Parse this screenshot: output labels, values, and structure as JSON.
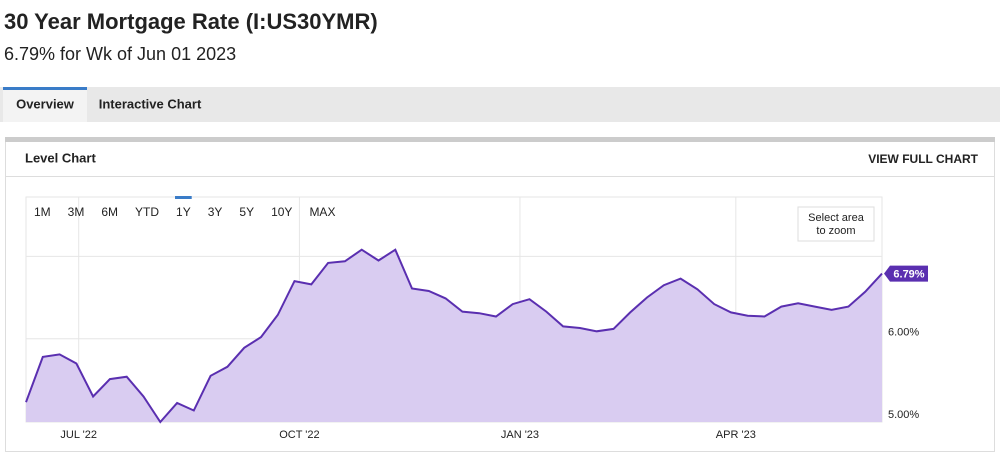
{
  "header": {
    "title": "30 Year Mortgage Rate (I:US30YMR)",
    "subtitle": "6.79% for Wk of Jun 01 2023"
  },
  "tabs": [
    "Overview",
    "Interactive Chart"
  ],
  "panel": {
    "title": "Level Chart",
    "action": "VIEW FULL CHART"
  },
  "ranges": [
    "1M",
    "3M",
    "6M",
    "YTD",
    "1Y",
    "3Y",
    "5Y",
    "10Y",
    "MAX"
  ],
  "selected_range_index": 4,
  "zoom_hint": "Select area to zoom",
  "chart_data": {
    "type": "area",
    "values": [
      5.23,
      5.78,
      5.81,
      5.7,
      5.3,
      5.51,
      5.54,
      5.3,
      4.99,
      5.22,
      5.13,
      5.55,
      5.66,
      5.89,
      6.02,
      6.29,
      6.7,
      6.66,
      6.92,
      6.94,
      7.08,
      6.95,
      7.08,
      6.61,
      6.58,
      6.49,
      6.33,
      6.31,
      6.27,
      6.42,
      6.48,
      6.33,
      6.15,
      6.13,
      6.09,
      6.12,
      6.32,
      6.5,
      6.65,
      6.73,
      6.6,
      6.42,
      6.32,
      6.28,
      6.27,
      6.39,
      6.43,
      6.39,
      6.35,
      6.39,
      6.57,
      6.79
    ],
    "last_value_label": "6.79%",
    "color": "#5a2fb0",
    "fill": "#d9ccf1",
    "xlim": [
      0,
      51
    ],
    "xticks": [
      {
        "value": 3.14,
        "label": "JUL '22"
      },
      {
        "value": 16.29,
        "label": "OCT '22"
      },
      {
        "value": 29.43,
        "label": "JAN '23"
      },
      {
        "value": 42.29,
        "label": "APR '23"
      }
    ],
    "ylim": [
      4.99,
      7.72
    ],
    "yticks": [
      {
        "value": 5,
        "label": "5.00%"
      },
      {
        "value": 6,
        "label": "6.00%"
      }
    ],
    "ygrid": [
      5,
      6,
      7
    ],
    "grid": true
  }
}
